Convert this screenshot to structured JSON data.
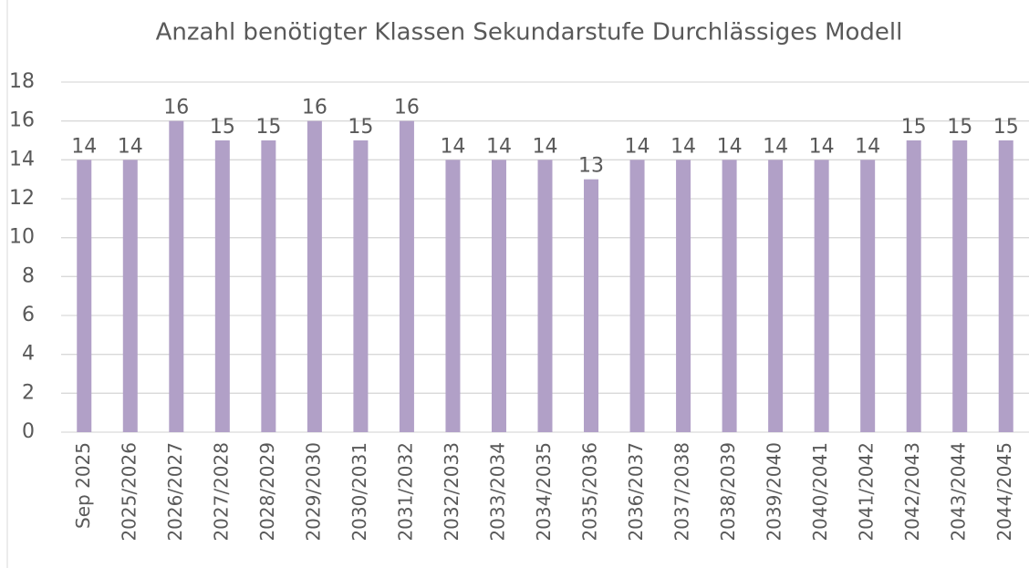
{
  "chart_data": {
    "type": "bar",
    "title": "Anzahl benötigter Klassen Sekundarstufe Durchlässiges Modell",
    "categories": [
      "Sep 2025",
      "2025/2026",
      "2026/2027",
      "2027/2028",
      "2028/2029",
      "2029/2030",
      "2030/2031",
      "2031/2032",
      "2032/2033",
      "2033/2034",
      "2034/2035",
      "2035/2036",
      "2036/2037",
      "2037/2038",
      "2038/2039",
      "2039/2040",
      "2040/2041",
      "2041/2042",
      "2042/2043",
      "2043/2044",
      "2044/2045"
    ],
    "values": [
      14,
      14,
      16,
      15,
      15,
      16,
      15,
      16,
      14,
      14,
      14,
      13,
      14,
      14,
      14,
      14,
      14,
      14,
      15,
      15,
      15
    ],
    "color": "#b1a0c7",
    "ylim": [
      0,
      18
    ],
    "yticks": [
      0,
      2,
      4,
      6,
      8,
      10,
      12,
      14,
      16,
      18
    ],
    "grid": true
  }
}
